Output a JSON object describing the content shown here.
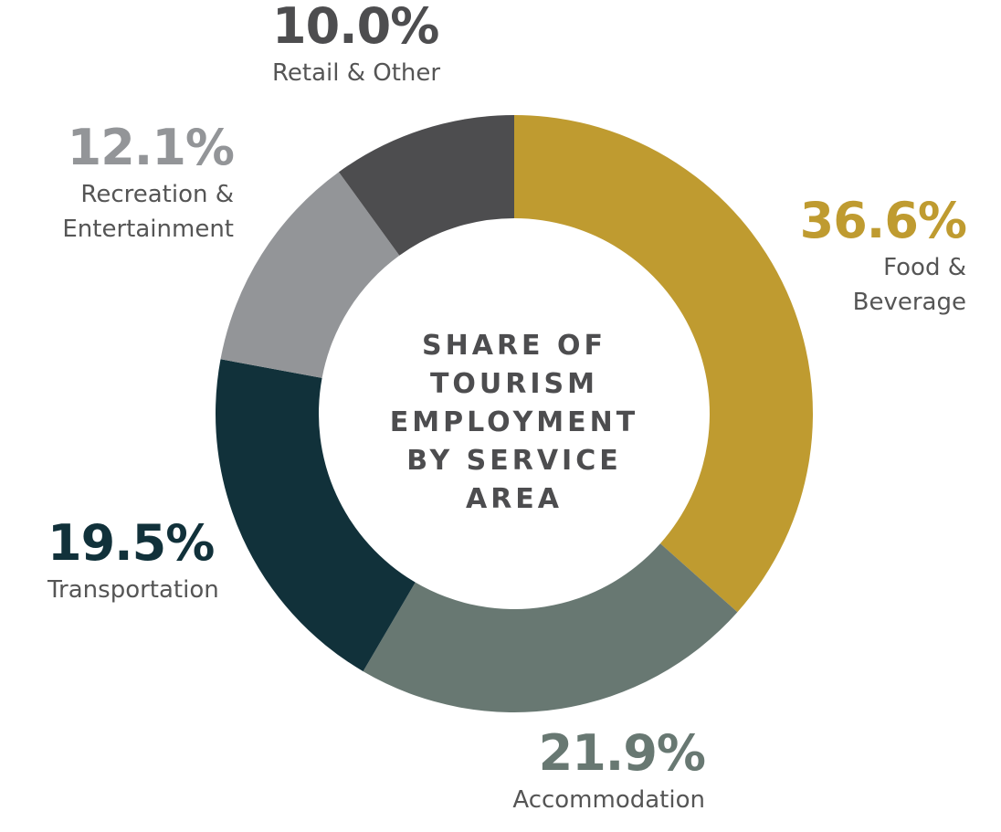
{
  "chart_data": {
    "type": "pie",
    "title": "SHARE OF TOURISM EMPLOYMENT BY SERVICE AREA",
    "categories": [
      "Food & Beverage",
      "Accommodation",
      "Transportation",
      "Recreation & Entertainment",
      "Retail & Other"
    ],
    "values": [
      36.6,
      21.9,
      19.5,
      12.1,
      10.0
    ],
    "value_labels": [
      "36.6%",
      "21.9%",
      "19.5%",
      "12.1%",
      "10.0%"
    ],
    "colors": [
      "#bf9b30",
      "#687872",
      "#11313a",
      "#939598",
      "#4d4d4f"
    ]
  }
}
